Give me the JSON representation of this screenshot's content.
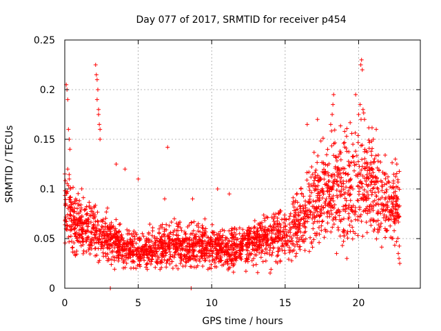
{
  "chart_data": {
    "type": "scatter",
    "title": "Day 077 of 2017, SRMTID for receiver p454",
    "xlabel": "GPS time / hours",
    "ylabel": "SRMTID / TECUs",
    "xlim": [
      0,
      24.2
    ],
    "ylim": [
      0,
      0.25
    ],
    "xticks": [
      0,
      5,
      10,
      15,
      20
    ],
    "xtick_labels": [
      "0",
      "5",
      "10",
      "15",
      "20"
    ],
    "yticks": [
      0,
      0.05,
      0.1,
      0.15,
      0.2,
      0.25
    ],
    "ytick_labels": [
      "0",
      "0.05",
      "0.1",
      "0.15",
      "0.2",
      "0.25"
    ],
    "grid": true,
    "marker": "+",
    "color": "#ff0000",
    "series": [
      {
        "name": "SRMTID",
        "trend_profile": [
          [
            0.0,
            0.075,
            0.035
          ],
          [
            1.0,
            0.065,
            0.025
          ],
          [
            2.0,
            0.06,
            0.025
          ],
          [
            3.0,
            0.05,
            0.02
          ],
          [
            4.0,
            0.042,
            0.018
          ],
          [
            5.0,
            0.038,
            0.016
          ],
          [
            6.0,
            0.04,
            0.017
          ],
          [
            7.0,
            0.043,
            0.018
          ],
          [
            8.0,
            0.042,
            0.018
          ],
          [
            9.0,
            0.045,
            0.019
          ],
          [
            10.0,
            0.042,
            0.017
          ],
          [
            11.0,
            0.038,
            0.016
          ],
          [
            12.0,
            0.042,
            0.017
          ],
          [
            13.0,
            0.048,
            0.02
          ],
          [
            14.0,
            0.052,
            0.022
          ],
          [
            15.0,
            0.055,
            0.022
          ],
          [
            16.0,
            0.065,
            0.028
          ],
          [
            17.0,
            0.09,
            0.04
          ],
          [
            18.0,
            0.1,
            0.045
          ],
          [
            19.0,
            0.095,
            0.05
          ],
          [
            20.0,
            0.11,
            0.055
          ],
          [
            21.0,
            0.1,
            0.05
          ],
          [
            22.0,
            0.085,
            0.035
          ],
          [
            22.8,
            0.08,
            0.03
          ]
        ],
        "notable_points": [
          [
            0.1,
            0.205
          ],
          [
            0.15,
            0.2
          ],
          [
            0.2,
            0.19
          ],
          [
            0.25,
            0.16
          ],
          [
            0.3,
            0.15
          ],
          [
            0.35,
            0.14
          ],
          [
            0.2,
            0.12
          ],
          [
            0.3,
            0.11
          ],
          [
            2.1,
            0.225
          ],
          [
            2.15,
            0.215
          ],
          [
            2.2,
            0.21
          ],
          [
            2.25,
            0.2
          ],
          [
            2.3,
            0.18
          ],
          [
            2.3,
            0.175
          ],
          [
            2.35,
            0.165
          ],
          [
            2.4,
            0.16
          ],
          [
            2.4,
            0.15
          ],
          [
            2.2,
            0.19
          ],
          [
            3.5,
            0.125
          ],
          [
            4.1,
            0.12
          ],
          [
            7.0,
            0.142
          ],
          [
            6.8,
            0.09
          ],
          [
            5.0,
            0.11
          ],
          [
            8.7,
            0.09
          ],
          [
            10.4,
            0.1
          ],
          [
            11.2,
            0.095
          ],
          [
            18.3,
            0.195
          ],
          [
            18.25,
            0.185
          ],
          [
            18.2,
            0.175
          ],
          [
            18.1,
            0.165
          ],
          [
            19.8,
            0.195
          ],
          [
            20.1,
            0.185
          ],
          [
            20.0,
            0.175
          ],
          [
            20.3,
            0.18
          ],
          [
            20.4,
            0.17
          ],
          [
            20.2,
            0.23
          ],
          [
            20.15,
            0.225
          ],
          [
            20.25,
            0.22
          ],
          [
            17.2,
            0.17
          ],
          [
            16.5,
            0.165
          ],
          [
            21.2,
            0.16
          ],
          [
            21.0,
            0.15
          ],
          [
            22.5,
            0.13
          ],
          [
            22.6,
            0.125
          ],
          [
            22.7,
            0.035
          ],
          [
            22.75,
            0.03
          ],
          [
            22.8,
            0.025
          ],
          [
            18.5,
            0.035
          ],
          [
            19.2,
            0.03
          ],
          [
            3.1,
            0.0
          ],
          [
            8.6,
            0.0
          ]
        ]
      }
    ]
  }
}
